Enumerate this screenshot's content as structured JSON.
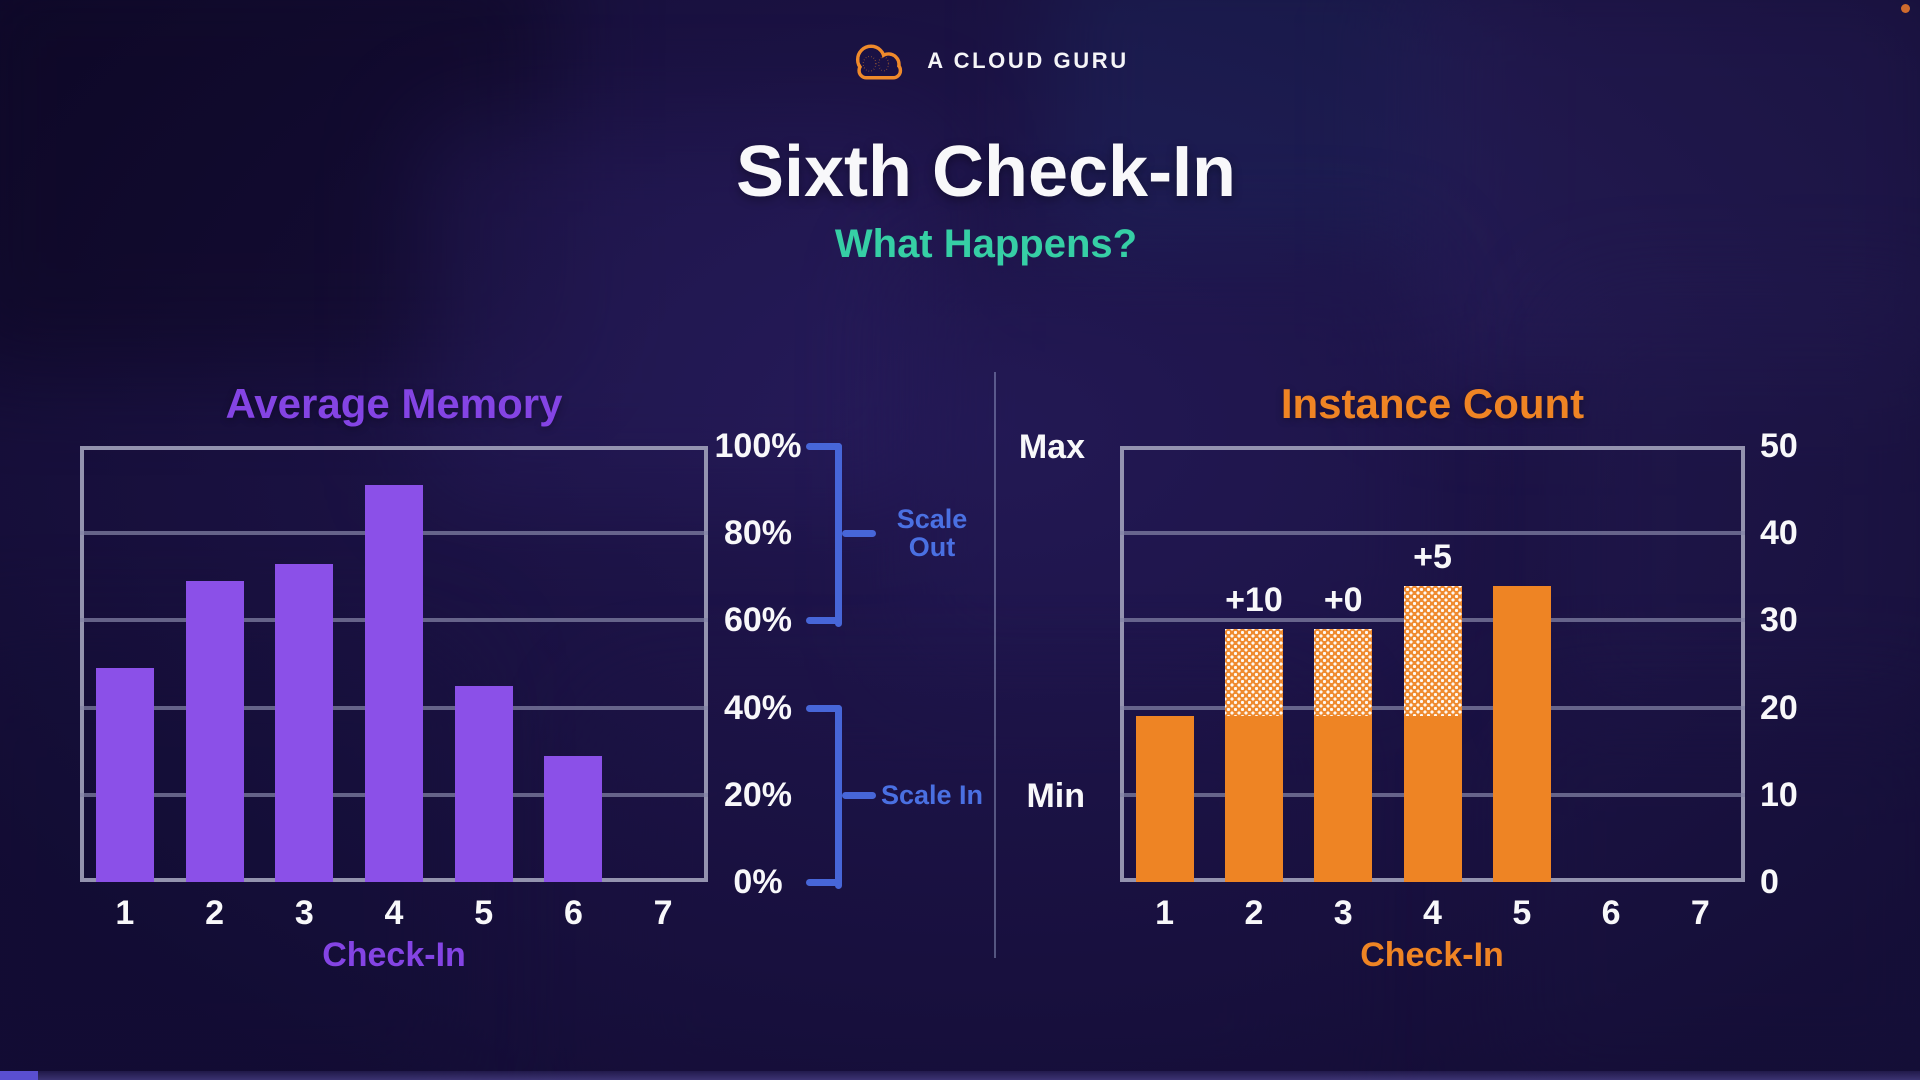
{
  "header": {
    "logo_text": "A CLOUD GURU"
  },
  "title": "Sixth Check-In",
  "subtitle": "What Happens?",
  "colors": {
    "purple_bar": "#8b50e8",
    "purple_text": "#8444e4",
    "orange_bar": "#ee8424",
    "orange_text": "#ef8424",
    "teal_subtitle": "#36cfa5",
    "bracket_blue": "#4766d8",
    "tick_white": "#f8f8fa",
    "corner_dot": "#cf6b2d",
    "player_played": "#5a4fd0"
  },
  "chart_data": [
    {
      "type": "bar",
      "title": "Average Memory",
      "xlabel": "Check-In",
      "categories": [
        "1",
        "2",
        "3",
        "4",
        "5",
        "6",
        "7"
      ],
      "values": [
        49,
        69,
        73,
        91,
        45,
        29,
        0
      ],
      "ylim": [
        0,
        100
      ],
      "ytick_labels": [
        "100%",
        "80%",
        "60%",
        "40%",
        "20%",
        "0%"
      ],
      "ytick_values": [
        100,
        80,
        60,
        40,
        20,
        0
      ],
      "grid": true,
      "legend": "none",
      "bar_color": "#8b50e8",
      "annotations": [
        {
          "label": "Scale Out",
          "from": 60,
          "to": 100
        },
        {
          "label": "Scale In",
          "from": 0,
          "to": 40
        }
      ]
    },
    {
      "type": "stacked-bar",
      "title": "Instance Count",
      "xlabel": "Check-In",
      "categories": [
        "1",
        "2",
        "3",
        "4",
        "5",
        "6",
        "7"
      ],
      "series": [
        {
          "name": "solid",
          "values": [
            19,
            19,
            19,
            19,
            34,
            0,
            0
          ]
        },
        {
          "name": "hatched",
          "values": [
            0,
            10,
            10,
            15,
            0,
            0,
            0
          ]
        }
      ],
      "bar_labels": [
        "",
        "+10",
        "+0",
        "+5",
        "",
        "",
        ""
      ],
      "ylim": [
        0,
        50
      ],
      "ytick_labels": [
        "50",
        "40",
        "30",
        "20",
        "10",
        "0"
      ],
      "ytick_values": [
        50,
        40,
        30,
        20,
        10,
        0
      ],
      "side_labels": [
        {
          "text": "Max",
          "value": 50
        },
        {
          "text": "Min",
          "value": 10
        }
      ],
      "grid": true,
      "legend": "none",
      "bar_color": "#ee8424"
    }
  ]
}
